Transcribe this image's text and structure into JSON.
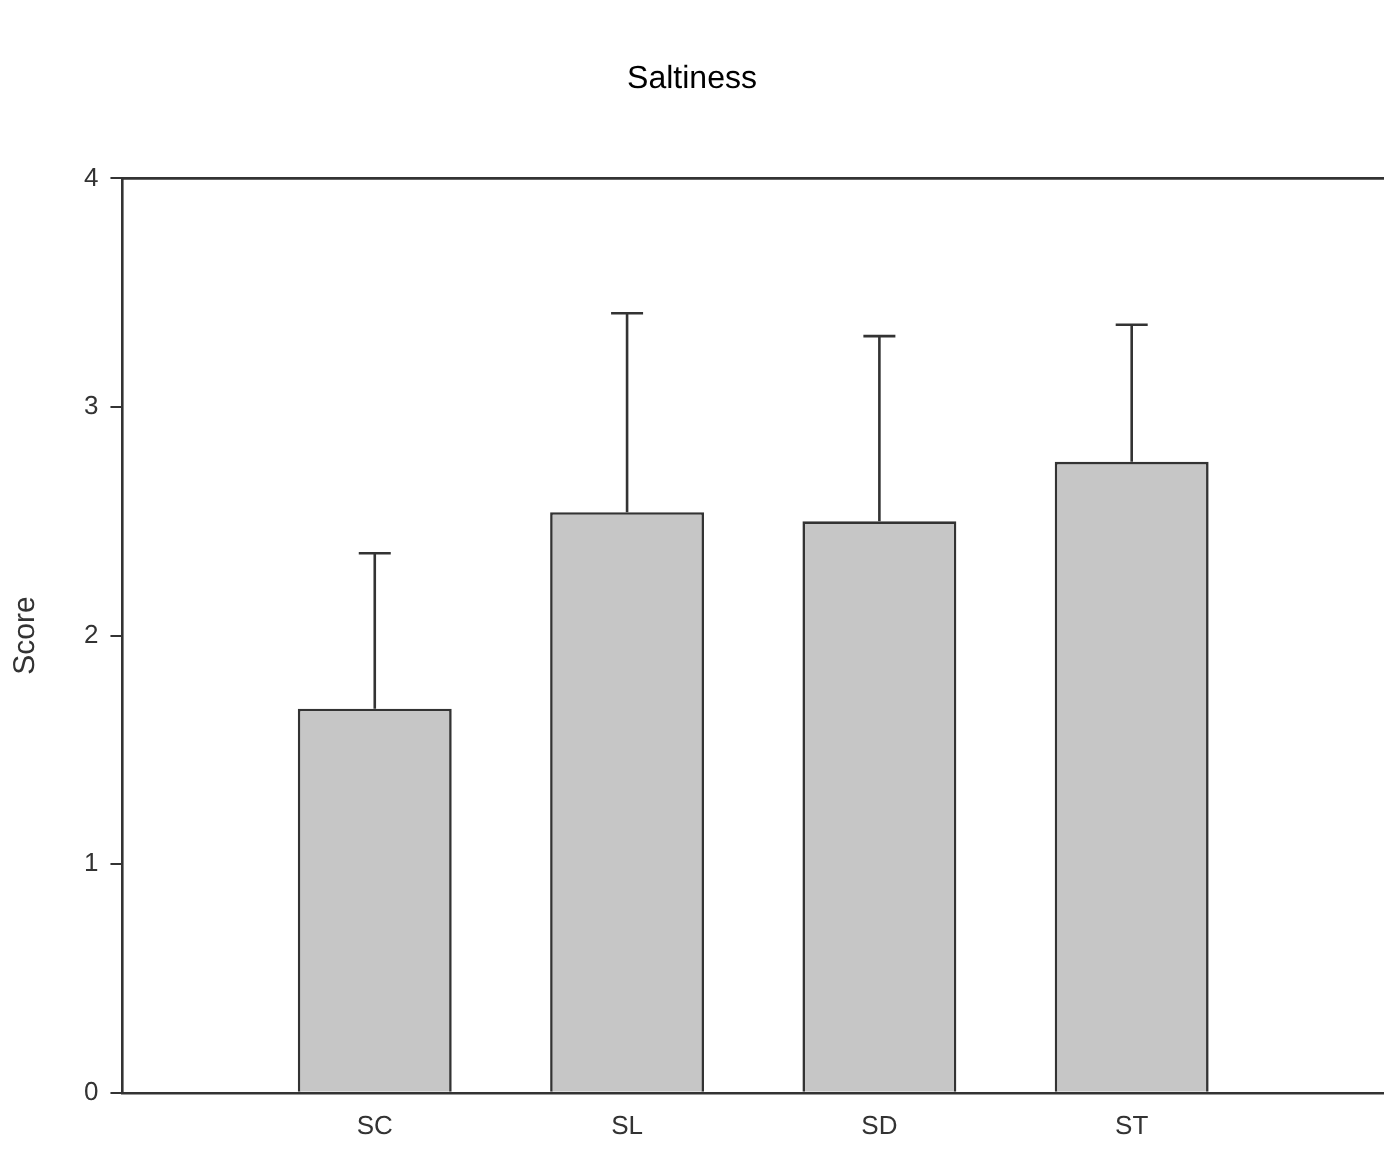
{
  "chart_data": {
    "type": "bar",
    "title": "Saltiness",
    "ylabel": "Score",
    "categories": [
      "SC",
      "SL",
      "SD",
      "ST"
    ],
    "values": [
      1.68,
      2.54,
      2.5,
      2.76
    ],
    "errors": [
      [
        1.68,
        2.36
      ],
      [
        2.54,
        3.41
      ],
      [
        2.5,
        3.31
      ],
      [
        2.76,
        3.36
      ]
    ],
    "color": "#c6c6c6",
    "ylim": [
      0,
      4
    ],
    "yticks": [
      0,
      1,
      2,
      3,
      4
    ],
    "grid": false,
    "legend": false
  }
}
